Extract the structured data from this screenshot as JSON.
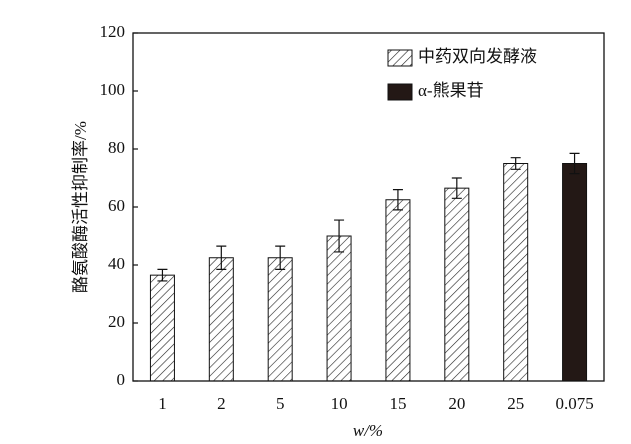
{
  "chart_data": {
    "type": "bar",
    "categories": [
      "1",
      "2",
      "5",
      "10",
      "15",
      "20",
      "25",
      "0.075"
    ],
    "series": [
      {
        "name": "中药双向发酵液",
        "color": "hatch",
        "values": [
          36.5,
          42.5,
          42.5,
          50,
          62.5,
          66.5,
          75,
          null
        ],
        "errors": [
          2,
          4,
          4,
          5.5,
          3.5,
          3.5,
          2,
          null
        ]
      },
      {
        "name": "α-熊果苷",
        "color": "#231815",
        "values": [
          null,
          null,
          null,
          null,
          null,
          null,
          null,
          75
        ],
        "errors": [
          null,
          null,
          null,
          null,
          null,
          null,
          null,
          3.5
        ]
      }
    ],
    "ylabel": "酪氨酸酶活性抑制率/%",
    "xlabel": "w/%",
    "ylim": [
      0,
      120
    ],
    "yticks": [
      0,
      20,
      40,
      60,
      80,
      100,
      120
    ],
    "legend": "upper right",
    "grid": false
  }
}
